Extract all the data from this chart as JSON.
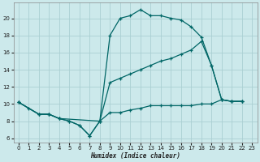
{
  "bg_color": "#cce9eb",
  "grid_color": "#aacfd2",
  "line_color": "#006666",
  "xlabel": "Humidex (Indice chaleur)",
  "xlim": [
    -0.5,
    23.5
  ],
  "ylim": [
    5.5,
    21.8
  ],
  "yticks": [
    6,
    8,
    10,
    12,
    14,
    16,
    18,
    20
  ],
  "xticks": [
    0,
    1,
    2,
    3,
    4,
    5,
    6,
    7,
    8,
    9,
    10,
    11,
    12,
    13,
    14,
    15,
    16,
    17,
    18,
    19,
    20,
    21,
    22,
    23
  ],
  "series": [
    {
      "x": [
        0,
        1,
        2,
        3,
        4,
        5,
        6,
        7,
        8,
        9,
        10,
        11,
        12,
        13,
        14,
        15,
        16,
        17,
        18,
        19,
        20,
        21,
        22
      ],
      "y": [
        10.2,
        9.5,
        8.8,
        8.8,
        8.3,
        8.0,
        7.5,
        6.3,
        8.0,
        18.0,
        20.0,
        20.3,
        21.0,
        20.3,
        20.3,
        20.0,
        19.8,
        19.0,
        17.8,
        14.5,
        10.5,
        10.3,
        10.3
      ]
    },
    {
      "x": [
        0,
        2,
        3,
        4,
        8,
        9,
        10,
        11,
        12,
        13,
        14,
        15,
        16,
        17,
        18,
        19,
        20,
        21,
        22
      ],
      "y": [
        10.2,
        8.8,
        8.8,
        8.3,
        8.0,
        12.5,
        13.0,
        13.5,
        14.0,
        14.5,
        15.0,
        15.3,
        15.8,
        16.3,
        17.3,
        14.5,
        10.5,
        10.3,
        10.3
      ]
    },
    {
      "x": [
        0,
        2,
        3,
        4,
        5,
        6,
        7,
        8,
        9,
        10,
        11,
        12,
        13,
        14,
        15,
        16,
        17,
        18,
        19,
        20,
        21,
        22
      ],
      "y": [
        10.2,
        8.8,
        8.8,
        8.3,
        8.0,
        7.5,
        6.3,
        8.0,
        9.0,
        9.0,
        9.3,
        9.5,
        9.8,
        9.8,
        9.8,
        9.8,
        9.8,
        10.0,
        10.0,
        10.5,
        10.3,
        10.3
      ]
    }
  ]
}
